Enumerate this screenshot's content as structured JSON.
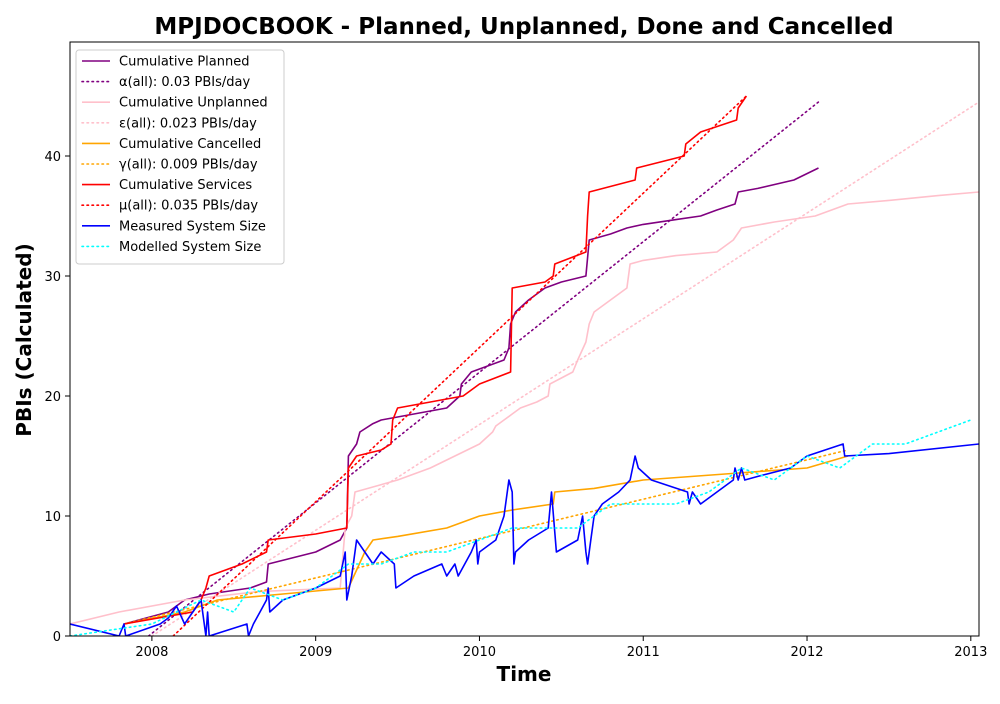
{
  "chart_data": {
    "type": "line",
    "title": "MPJDOCBOOK - Planned, Unplanned, Done  and Cancelled",
    "xlabel": "Time",
    "ylabel": "PBIs (Calculated)",
    "xlim": [
      2007.5,
      2013.05
    ],
    "ylim": [
      0,
      49.5
    ],
    "grid": false,
    "legend_position": "top-left",
    "x_ticks": [
      {
        "value": 2008,
        "label": "2008"
      },
      {
        "value": 2009,
        "label": "2009"
      },
      {
        "value": 2010,
        "label": "2010"
      },
      {
        "value": 2011,
        "label": "2011"
      },
      {
        "value": 2012,
        "label": "2012"
      },
      {
        "value": 2013,
        "label": "2013"
      }
    ],
    "y_ticks": [
      {
        "value": 0,
        "label": "0"
      },
      {
        "value": 10,
        "label": "10"
      },
      {
        "value": 20,
        "label": "20"
      },
      {
        "value": 30,
        "label": "30"
      },
      {
        "value": 40,
        "label": "40"
      }
    ],
    "series": [
      {
        "name": "Cumulative Planned",
        "color": "#800080",
        "style": "solid",
        "points": [
          [
            2007.83,
            1
          ],
          [
            2008.1,
            2
          ],
          [
            2008.2,
            3
          ],
          [
            2008.35,
            3.5
          ],
          [
            2008.6,
            4
          ],
          [
            2008.7,
            4.5
          ],
          [
            2008.71,
            6
          ],
          [
            2009.0,
            7
          ],
          [
            2009.15,
            8
          ],
          [
            2009.19,
            9
          ],
          [
            2009.2,
            15
          ],
          [
            2009.25,
            16
          ],
          [
            2009.27,
            17
          ],
          [
            2009.35,
            17.7
          ],
          [
            2009.4,
            18
          ],
          [
            2009.6,
            18.5
          ],
          [
            2009.8,
            19
          ],
          [
            2009.88,
            20
          ],
          [
            2009.89,
            21
          ],
          [
            2009.95,
            22
          ],
          [
            2010.15,
            23
          ],
          [
            2010.18,
            24
          ],
          [
            2010.19,
            26
          ],
          [
            2010.22,
            27
          ],
          [
            2010.3,
            28
          ],
          [
            2010.4,
            29
          ],
          [
            2010.5,
            29.5
          ],
          [
            2010.65,
            30
          ],
          [
            2010.67,
            33
          ],
          [
            2010.8,
            33.5
          ],
          [
            2010.9,
            34
          ],
          [
            2011.0,
            34.3
          ],
          [
            2011.2,
            34.7
          ],
          [
            2011.35,
            35
          ],
          [
            2011.45,
            35.5
          ],
          [
            2011.56,
            36
          ],
          [
            2011.58,
            37
          ],
          [
            2011.7,
            37.3
          ],
          [
            2011.92,
            38
          ],
          [
            2012.07,
            39
          ]
        ]
      },
      {
        "name": "α(all): 0.03 PBIs/day",
        "color": "#800080",
        "style": "dotted",
        "points": [
          [
            2007.98,
            0
          ],
          [
            2012.07,
            44.5
          ]
        ]
      },
      {
        "name": "Cumulative Unplanned",
        "color": "#ffc0cb",
        "style": "solid",
        "points": [
          [
            2007.5,
            1
          ],
          [
            2007.8,
            2
          ],
          [
            2008.2,
            3
          ],
          [
            2008.65,
            3.7
          ],
          [
            2009.15,
            4
          ],
          [
            2009.18,
            9
          ],
          [
            2009.22,
            10
          ],
          [
            2009.24,
            12
          ],
          [
            2009.5,
            13
          ],
          [
            2009.7,
            14
          ],
          [
            2010.0,
            16
          ],
          [
            2010.08,
            17
          ],
          [
            2010.1,
            17.5
          ],
          [
            2010.15,
            18
          ],
          [
            2010.2,
            18.5
          ],
          [
            2010.25,
            19
          ],
          [
            2010.35,
            19.5
          ],
          [
            2010.42,
            20
          ],
          [
            2010.43,
            21
          ],
          [
            2010.5,
            21.5
          ],
          [
            2010.57,
            22
          ],
          [
            2010.6,
            23
          ],
          [
            2010.65,
            24.5
          ],
          [
            2010.67,
            26
          ],
          [
            2010.7,
            27
          ],
          [
            2010.8,
            28
          ],
          [
            2010.9,
            29
          ],
          [
            2010.92,
            31
          ],
          [
            2011.0,
            31.3
          ],
          [
            2011.2,
            31.7
          ],
          [
            2011.45,
            32
          ],
          [
            2011.55,
            33
          ],
          [
            2011.6,
            34
          ],
          [
            2011.8,
            34.5
          ],
          [
            2012.05,
            35
          ],
          [
            2012.25,
            36
          ],
          [
            2012.5,
            36.3
          ],
          [
            2012.8,
            36.7
          ],
          [
            2013.05,
            37
          ]
        ]
      },
      {
        "name": "ε(all): 0.023 PBIs/day",
        "color": "#ffc0cb",
        "style": "dotted",
        "points": [
          [
            2008.0,
            0
          ],
          [
            2013.05,
            44.5
          ]
        ]
      },
      {
        "name": "Cumulative Cancelled",
        "color": "#ffa500",
        "style": "solid",
        "points": [
          [
            2007.83,
            1
          ],
          [
            2008.2,
            2
          ],
          [
            2008.4,
            3
          ],
          [
            2008.8,
            3.5
          ],
          [
            2009.2,
            4
          ],
          [
            2009.3,
            7
          ],
          [
            2009.35,
            8
          ],
          [
            2009.5,
            8.3
          ],
          [
            2009.8,
            9
          ],
          [
            2010.0,
            10
          ],
          [
            2010.2,
            10.5
          ],
          [
            2010.45,
            11
          ],
          [
            2010.46,
            12
          ],
          [
            2010.7,
            12.3
          ],
          [
            2011.0,
            13
          ],
          [
            2011.5,
            13.5
          ],
          [
            2012.0,
            14
          ],
          [
            2012.25,
            15
          ]
        ]
      },
      {
        "name": "γ(all): 0.009 PBIs/day",
        "color": "#ffa500",
        "style": "dotted",
        "points": [
          [
            2007.83,
            1
          ],
          [
            2012.25,
            15.5
          ]
        ]
      },
      {
        "name": "Cumulative Services",
        "color": "#ff0000",
        "style": "solid",
        "points": [
          [
            2007.83,
            1
          ],
          [
            2008.25,
            2
          ],
          [
            2008.3,
            3
          ],
          [
            2008.33,
            4
          ],
          [
            2008.35,
            5
          ],
          [
            2008.55,
            6
          ],
          [
            2008.7,
            7
          ],
          [
            2008.71,
            8
          ],
          [
            2009.0,
            8.5
          ],
          [
            2009.19,
            9
          ],
          [
            2009.2,
            14
          ],
          [
            2009.25,
            15
          ],
          [
            2009.4,
            15.5
          ],
          [
            2009.46,
            16
          ],
          [
            2009.47,
            18
          ],
          [
            2009.5,
            19
          ],
          [
            2009.9,
            20
          ],
          [
            2010.0,
            21
          ],
          [
            2010.19,
            22
          ],
          [
            2010.2,
            29
          ],
          [
            2010.4,
            29.5
          ],
          [
            2010.45,
            30
          ],
          [
            2010.46,
            31
          ],
          [
            2010.65,
            32
          ],
          [
            2010.66,
            35
          ],
          [
            2010.67,
            37
          ],
          [
            2010.95,
            38
          ],
          [
            2010.96,
            39
          ],
          [
            2011.25,
            40
          ],
          [
            2011.26,
            41
          ],
          [
            2011.35,
            42
          ],
          [
            2011.57,
            43
          ],
          [
            2011.58,
            44
          ],
          [
            2011.63,
            45
          ]
        ]
      },
      {
        "name": "μ(all): 0.035 PBIs/day",
        "color": "#ff0000",
        "style": "dotted",
        "points": [
          [
            2008.13,
            0
          ],
          [
            2011.63,
            45
          ]
        ]
      },
      {
        "name": "Measured System Size",
        "color": "#0000ff",
        "style": "solid",
        "points": [
          [
            2007.5,
            1
          ],
          [
            2007.8,
            0
          ],
          [
            2007.83,
            1
          ],
          [
            2007.84,
            0
          ],
          [
            2008.05,
            1
          ],
          [
            2008.1,
            1.5
          ],
          [
            2008.15,
            2.5
          ],
          [
            2008.2,
            1
          ],
          [
            2008.25,
            2
          ],
          [
            2008.3,
            3
          ],
          [
            2008.33,
            0
          ],
          [
            2008.34,
            2
          ],
          [
            2008.35,
            0
          ],
          [
            2008.58,
            1
          ],
          [
            2008.59,
            0
          ],
          [
            2008.62,
            1
          ],
          [
            2008.66,
            2
          ],
          [
            2008.7,
            3
          ],
          [
            2008.71,
            4
          ],
          [
            2008.72,
            2
          ],
          [
            2008.8,
            3
          ],
          [
            2009.0,
            4
          ],
          [
            2009.15,
            5
          ],
          [
            2009.18,
            7
          ],
          [
            2009.19,
            3
          ],
          [
            2009.22,
            5
          ],
          [
            2009.25,
            8
          ],
          [
            2009.3,
            7
          ],
          [
            2009.35,
            6
          ],
          [
            2009.4,
            7
          ],
          [
            2009.48,
            6
          ],
          [
            2009.49,
            4
          ],
          [
            2009.6,
            5
          ],
          [
            2009.77,
            6
          ],
          [
            2009.8,
            5
          ],
          [
            2009.85,
            6
          ],
          [
            2009.87,
            5
          ],
          [
            2009.95,
            7
          ],
          [
            2009.98,
            8
          ],
          [
            2009.99,
            6
          ],
          [
            2010.0,
            7
          ],
          [
            2010.05,
            7.5
          ],
          [
            2010.1,
            8
          ],
          [
            2010.15,
            10
          ],
          [
            2010.18,
            13
          ],
          [
            2010.2,
            12
          ],
          [
            2010.21,
            6
          ],
          [
            2010.22,
            7
          ],
          [
            2010.3,
            8
          ],
          [
            2010.42,
            9
          ],
          [
            2010.44,
            12
          ],
          [
            2010.47,
            7
          ],
          [
            2010.6,
            8
          ],
          [
            2010.63,
            10
          ],
          [
            2010.65,
            7
          ],
          [
            2010.66,
            6
          ],
          [
            2010.68,
            8
          ],
          [
            2010.7,
            10
          ],
          [
            2010.75,
            11
          ],
          [
            2010.85,
            12
          ],
          [
            2010.92,
            13
          ],
          [
            2010.95,
            15
          ],
          [
            2010.97,
            14
          ],
          [
            2011.05,
            13
          ],
          [
            2011.27,
            12
          ],
          [
            2011.28,
            11
          ],
          [
            2011.3,
            12
          ],
          [
            2011.35,
            11
          ],
          [
            2011.55,
            13
          ],
          [
            2011.56,
            14
          ],
          [
            2011.58,
            13
          ],
          [
            2011.6,
            14
          ],
          [
            2011.62,
            13
          ],
          [
            2011.7,
            13.3
          ],
          [
            2011.9,
            14
          ],
          [
            2012.0,
            15
          ],
          [
            2012.22,
            16
          ],
          [
            2012.23,
            15
          ],
          [
            2012.5,
            15.2
          ],
          [
            2013.05,
            16
          ]
        ]
      },
      {
        "name": "Modelled System Size",
        "color": "#00ffff",
        "style": "dotted",
        "points": [
          [
            2007.5,
            0
          ],
          [
            2008.0,
            1
          ],
          [
            2008.3,
            3
          ],
          [
            2008.5,
            2
          ],
          [
            2008.6,
            4
          ],
          [
            2008.8,
            3
          ],
          [
            2009.0,
            4
          ],
          [
            2009.2,
            6
          ],
          [
            2009.4,
            6
          ],
          [
            2009.6,
            7
          ],
          [
            2009.8,
            7
          ],
          [
            2010.0,
            8
          ],
          [
            2010.2,
            9
          ],
          [
            2010.4,
            9
          ],
          [
            2010.6,
            9
          ],
          [
            2010.8,
            11
          ],
          [
            2011.0,
            11
          ],
          [
            2011.2,
            11
          ],
          [
            2011.4,
            12
          ],
          [
            2011.6,
            14
          ],
          [
            2011.8,
            13
          ],
          [
            2012.0,
            15
          ],
          [
            2012.2,
            14
          ],
          [
            2012.4,
            16
          ],
          [
            2012.6,
            16
          ],
          [
            2012.8,
            17
          ],
          [
            2013.0,
            18
          ]
        ]
      }
    ]
  }
}
